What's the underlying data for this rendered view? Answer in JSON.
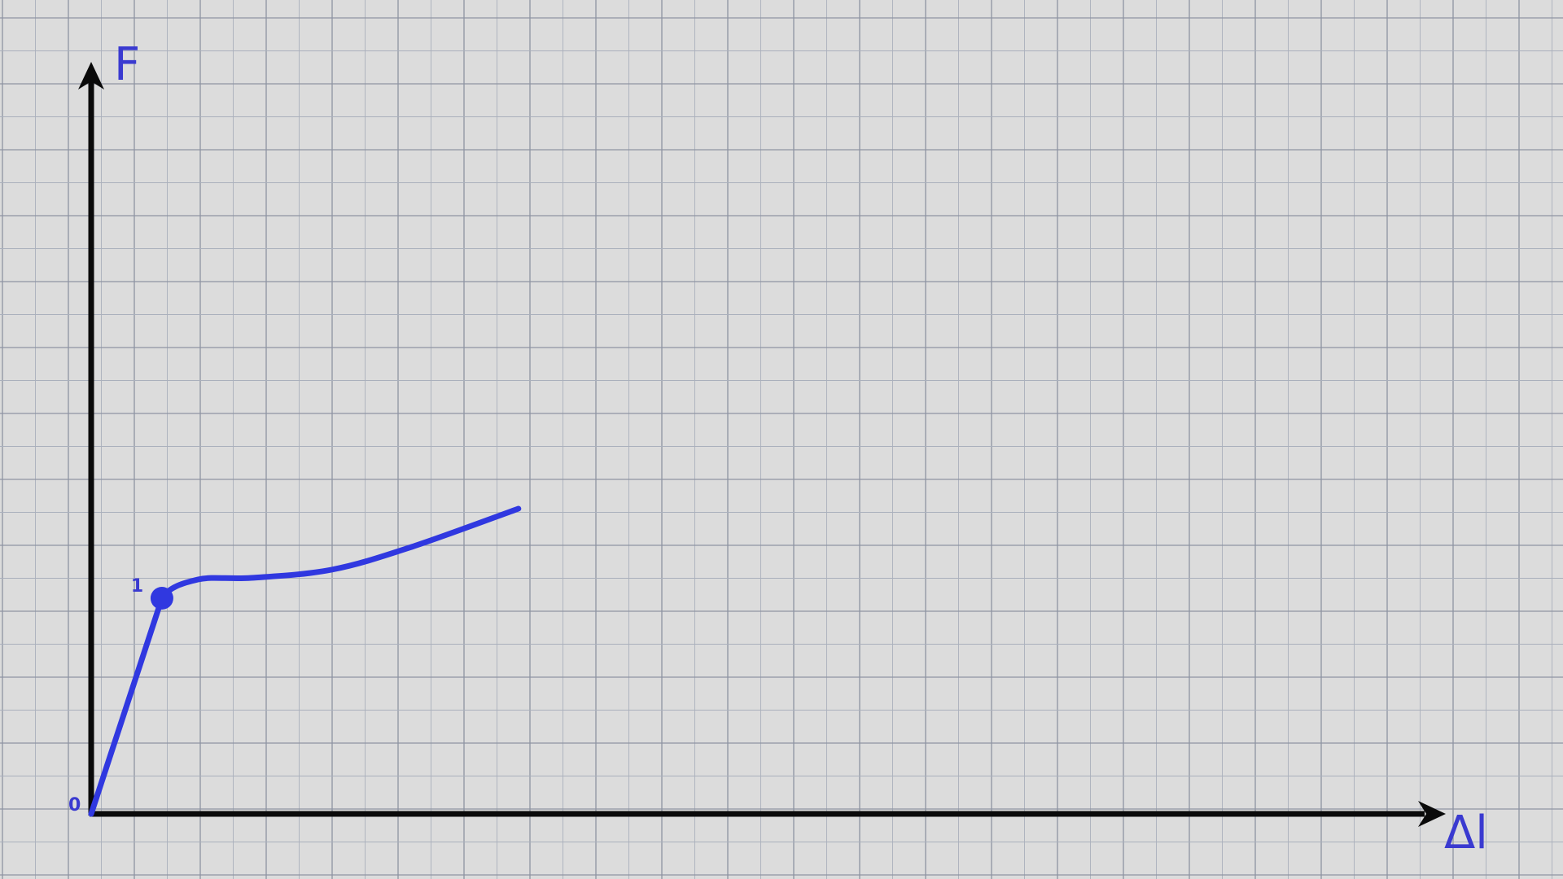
{
  "colors": {
    "background": "#dcdcdc",
    "grid_minor": "#aab0bc",
    "grid_major": "#8e94a2",
    "axis": "#0a0a0a",
    "curve": "#3038e0",
    "label": "#3a3ad0"
  },
  "chart_data": {
    "type": "line",
    "title": "",
    "xlabel": "Δl",
    "ylabel": "F",
    "grid": true,
    "legend": "none",
    "origin_label": "0",
    "xlim": [
      0,
      10
    ],
    "ylim": [
      0,
      5.5
    ],
    "series": [
      {
        "points": [
          {
            "x": 0.0,
            "y": 0.0
          },
          {
            "x": 0.53,
            "y": 2.65
          },
          {
            "x": 0.8,
            "y": 2.88
          },
          {
            "x": 1.2,
            "y": 2.9
          },
          {
            "x": 1.8,
            "y": 3.0
          },
          {
            "x": 2.4,
            "y": 3.28
          },
          {
            "x": 3.2,
            "y": 3.75
          }
        ]
      }
    ],
    "annotations": [
      {
        "label": "1",
        "x": 0.53,
        "y": 2.65
      }
    ]
  }
}
